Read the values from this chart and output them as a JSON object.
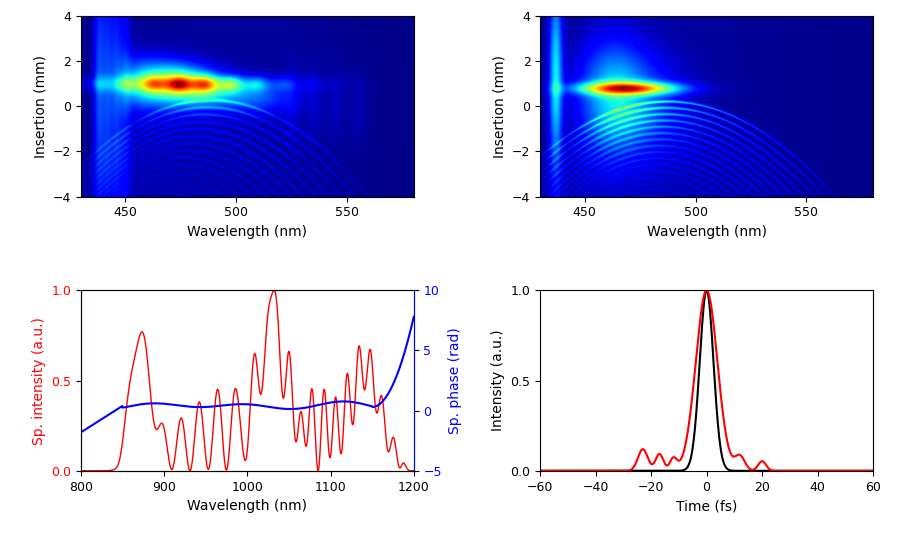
{
  "fig_width": 9.0,
  "fig_height": 5.35,
  "bg_color": "#ffffff",
  "top_left": {
    "xlim": [
      430,
      580
    ],
    "ylim": [
      -4,
      4
    ],
    "xlabel": "Wavelength (nm)",
    "ylabel": "Insertion (mm)",
    "xticks": [
      450,
      500,
      550
    ],
    "yticks": [
      -4,
      -2,
      0,
      2,
      4
    ]
  },
  "top_right": {
    "xlim": [
      430,
      580
    ],
    "ylim": [
      -4,
      4
    ],
    "xlabel": "Wavelength (nm)",
    "ylabel": "Insertion (mm)",
    "xticks": [
      450,
      500,
      550
    ],
    "yticks": [
      -4,
      -2,
      0,
      2,
      4
    ]
  },
  "bottom_left": {
    "xlim": [
      800,
      1200
    ],
    "ylim_left": [
      0,
      1
    ],
    "ylim_right": [
      -5,
      10
    ],
    "xlabel": "Wavelength (nm)",
    "ylabel_left": "Sp. intensity (a.u.)",
    "ylabel_right": "Sp. phase (rad)",
    "xticks": [
      800,
      900,
      1000,
      1100,
      1200
    ],
    "yticks_left": [
      0,
      0.5,
      1
    ],
    "yticks_right": [
      -5,
      0,
      5,
      10
    ],
    "color_red": "#ff0000",
    "color_blue": "#0000ff"
  },
  "bottom_right": {
    "xlim": [
      -60,
      60
    ],
    "ylim": [
      0,
      1
    ],
    "xlabel": "Time (fs)",
    "ylabel": "Intensity (a.u.)",
    "xticks": [
      -60,
      -40,
      -20,
      0,
      20,
      40,
      60
    ],
    "yticks": [
      0,
      0.5,
      1
    ],
    "color_black": "#000000",
    "color_red": "#ff0000"
  }
}
